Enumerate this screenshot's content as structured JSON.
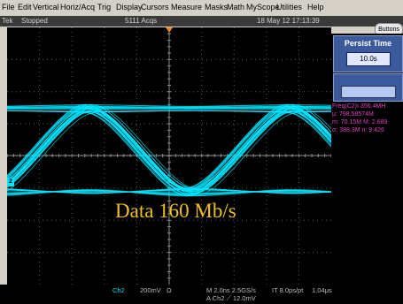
{
  "menu": [
    "File",
    "Edit",
    "Vertical",
    "Horiz/Acq",
    "Trig",
    "Display",
    "Cursors",
    "Measure",
    "Masks",
    "Math",
    "MyScope",
    "Utilities",
    "Help"
  ],
  "status": {
    "brand": "Tek",
    "state": "Stopped",
    "acqs": "5111 Acqs",
    "datetime": "18 May 12 17:13:39"
  },
  "buttons_label": "Buttons",
  "persist": {
    "title": "Persist Time",
    "value": "10.0s"
  },
  "ref_marker": "2",
  "measurement": {
    "line1": "Freq(C2)I    356.4MH",
    "line2": "μ: 798.58574M",
    "line3": "m: 70.15M   M: 2.689",
    "line4": "σ: 388.3M   n: 9.426"
  },
  "caption": "Data 160 Mb/s",
  "readout": {
    "ch": "Ch2",
    "scale": "200mV",
    "ohm": "Ω",
    "timebase": "M 2.0ns 2.5GS/s",
    "trig": "A  Ch2  ⟋  12.0mV",
    "ptpt": "IT 8.0ps/pt",
    "pos": "1.04μs"
  },
  "colors": {
    "trace": "#00e5ff",
    "caption": "#f0c020",
    "measure": "#e040c0",
    "panel": "#3a5a9c"
  }
}
